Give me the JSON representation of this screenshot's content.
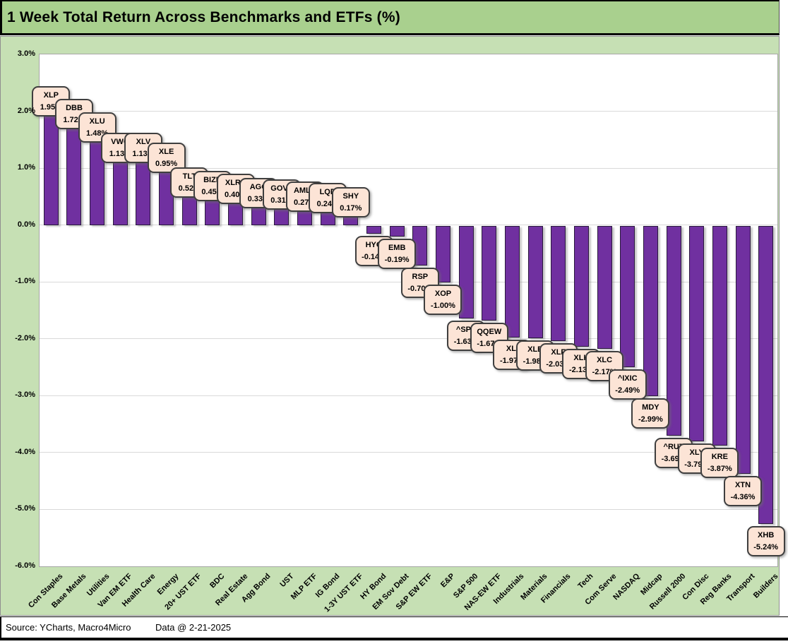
{
  "title": "1 Week Total Return Across Benchmarks and ETFs (%)",
  "footer": {
    "source": "Source: YCharts, Macro4Micro",
    "data_date": "Data @ 2-21-2025"
  },
  "colors": {
    "title_bg": "#A9D08E",
    "frame_bg": "#C6E0B4",
    "plot_bg": "#FFFFFF",
    "bar_fill": "#7030A0",
    "bar_border": "#2A1A3D",
    "callout_fill": "#FCE4D6",
    "callout_border": "#3F3F3F",
    "gridline": "#D9D9D9"
  },
  "chart_data": {
    "type": "bar",
    "title": "1 Week Total Return Across Benchmarks and ETFs (%)",
    "xlabel": "",
    "ylabel": "",
    "ylim": [
      -6,
      3
    ],
    "grid": true,
    "legend": "none",
    "y_ticks": [
      "3.0%",
      "2.0%",
      "1.0%",
      "0.0%",
      "-1.0%",
      "-2.0%",
      "-3.0%",
      "-4.0%",
      "-5.0%",
      "-6.0%"
    ],
    "categories": [
      "Con Staples",
      "Base Metals",
      "Utilities",
      "Van EM ETF",
      "Health Care",
      "Energy",
      "20+ UST ETF",
      "BDC",
      "Real Estate",
      "Agg Bond",
      "UST",
      "MLP ETF",
      "IG Bond",
      "1-3Y UST ETF",
      "HY Bond",
      "EM Sov Debt",
      "S&P EW ETF",
      "E&P",
      "S&P 500",
      "NAS-EW ETF",
      "Industrials",
      "Materials",
      "Financials",
      "Tech",
      "Com Serve",
      "NASDAQ",
      "Midcap",
      "Russell 2000",
      "Con Disc",
      "Reg Banks",
      "Transport",
      "Builders"
    ],
    "tickers": [
      "XLP",
      "DBB",
      "XLU",
      "VWO",
      "XLV",
      "XLE",
      "TLT",
      "BIZD",
      "XLRE",
      "AGG",
      "GOVT",
      "AMLP",
      "LQD",
      "SHY",
      "HYG",
      "EMB",
      "RSP",
      "XOP",
      "^SPX",
      "QQEW",
      "XLI",
      "XLB",
      "XLF",
      "XLK",
      "XLC",
      "^IXIC",
      "MDY",
      "^RUT",
      "XLY",
      "KRE",
      "XTN",
      "XHB"
    ],
    "series": [
      {
        "name": "1 Week Total Return (%)",
        "values": [
          1.95,
          1.72,
          1.48,
          1.13,
          1.13,
          0.95,
          0.52,
          0.45,
          0.4,
          0.33,
          0.31,
          0.27,
          0.24,
          0.17,
          -0.14,
          -0.19,
          -0.7,
          -1.0,
          -1.63,
          -1.67,
          -1.97,
          -1.98,
          -2.03,
          -2.13,
          -2.17,
          -2.49,
          -2.99,
          -3.69,
          -3.79,
          -3.87,
          -4.36,
          -5.24
        ]
      }
    ],
    "value_labels": [
      "1.95%",
      "1.72%",
      "1.48%",
      "1.13%",
      "1.13%",
      "0.95%",
      "0.52%",
      "0.45%",
      "0.40%",
      "0.33%",
      "0.31%",
      "0.27%",
      "0.24%",
      "0.17%",
      "-0.14%",
      "-0.19%",
      "-0.70%",
      "-1.00%",
      "-1.63%",
      "-1.67%",
      "-1.97%",
      "-1.98%",
      "-2.03%",
      "-2.13%",
      "-2.17%",
      "-2.49%",
      "-2.99%",
      "-3.69%",
      "-3.79%",
      "-3.87%",
      "-4.36%",
      "-5.24%"
    ]
  }
}
